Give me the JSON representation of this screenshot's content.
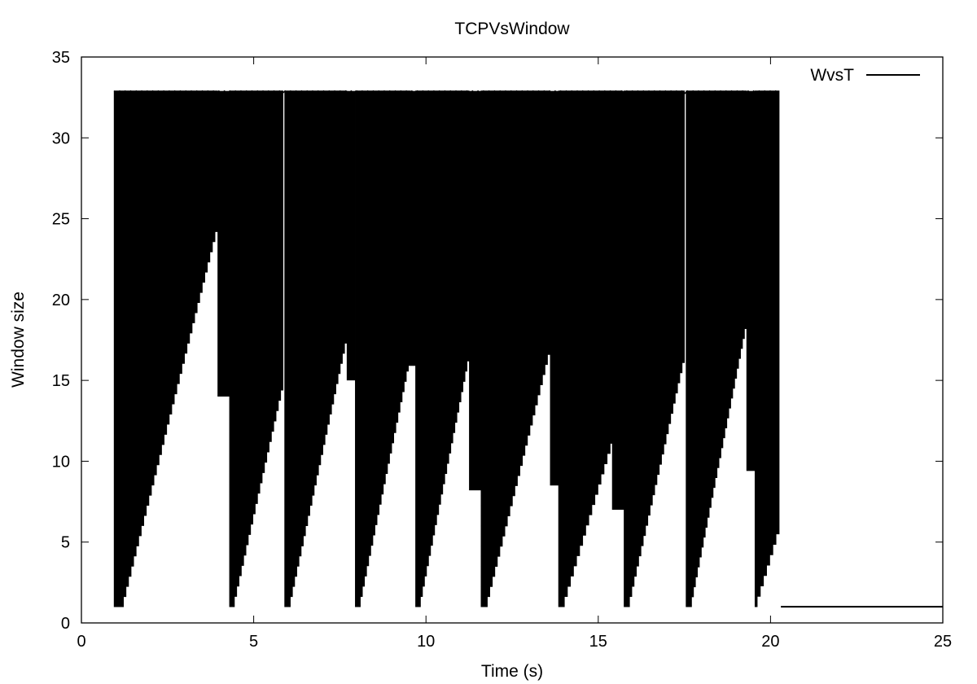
{
  "chart_data": {
    "type": "line",
    "title": "TCPVsWindow",
    "xlabel": "Time (s)",
    "ylabel": "Window size",
    "xlim": [
      0,
      25
    ],
    "ylim": [
      0,
      35
    ],
    "xticks": [
      0,
      5,
      10,
      15,
      20,
      25
    ],
    "yticks": [
      0,
      5,
      10,
      15,
      20,
      25,
      30,
      35
    ],
    "grid": false,
    "legend": "top-right",
    "line_color": "#000000",
    "series": [
      {
        "name": "WvsT",
        "mode": "window-envelope",
        "top_window": 32.9,
        "cycles": [
          {
            "t_start": 0.95,
            "t_end": 3.95,
            "w_start": 1,
            "w_end": 24.2
          },
          {
            "t_start": 4.3,
            "t_end": 5.85,
            "w_start": 1,
            "w_end": 14.4
          },
          {
            "t_start": 5.9,
            "t_end": 7.7,
            "w_start": 1,
            "w_end": 17.3
          },
          {
            "t_start": 7.95,
            "t_end": 9.55,
            "w_start": 1,
            "w_end": 16.2
          },
          {
            "t_start": 9.7,
            "t_end": 11.25,
            "w_start": 1,
            "w_end": 16.2
          },
          {
            "t_start": 11.6,
            "t_end": 13.6,
            "w_start": 1,
            "w_end": 16.6
          },
          {
            "t_start": 13.85,
            "t_end": 15.7,
            "w_start": 1,
            "w_end": 13.0
          },
          {
            "t_start": 15.75,
            "t_end": 17.5,
            "w_start": 1,
            "w_end": 16.1
          },
          {
            "t_start": 17.55,
            "t_end": 19.3,
            "w_start": 1,
            "w_end": 18.2
          },
          {
            "t_start": 19.55,
            "t_end": 20.25,
            "w_start": 1,
            "w_end": 5.5
          }
        ],
        "plateaus": [
          {
            "t_start": 3.95,
            "t_end": 4.3,
            "w": 14.0
          },
          {
            "t_start": 7.7,
            "t_end": 7.95,
            "w": 15.0
          },
          {
            "t_start": 9.35,
            "t_end": 9.7,
            "w": 15.9
          },
          {
            "t_start": 11.25,
            "t_end": 11.6,
            "w": 8.2
          },
          {
            "t_start": 13.6,
            "t_end": 13.85,
            "w": 8.5
          },
          {
            "t_start": 15.4,
            "t_end": 15.75,
            "w": 7.0
          },
          {
            "t_start": 19.3,
            "t_end": 19.55,
            "w": 9.4
          }
        ],
        "tail": {
          "t_start": 20.3,
          "t_end": 25,
          "w": 1
        }
      }
    ]
  }
}
